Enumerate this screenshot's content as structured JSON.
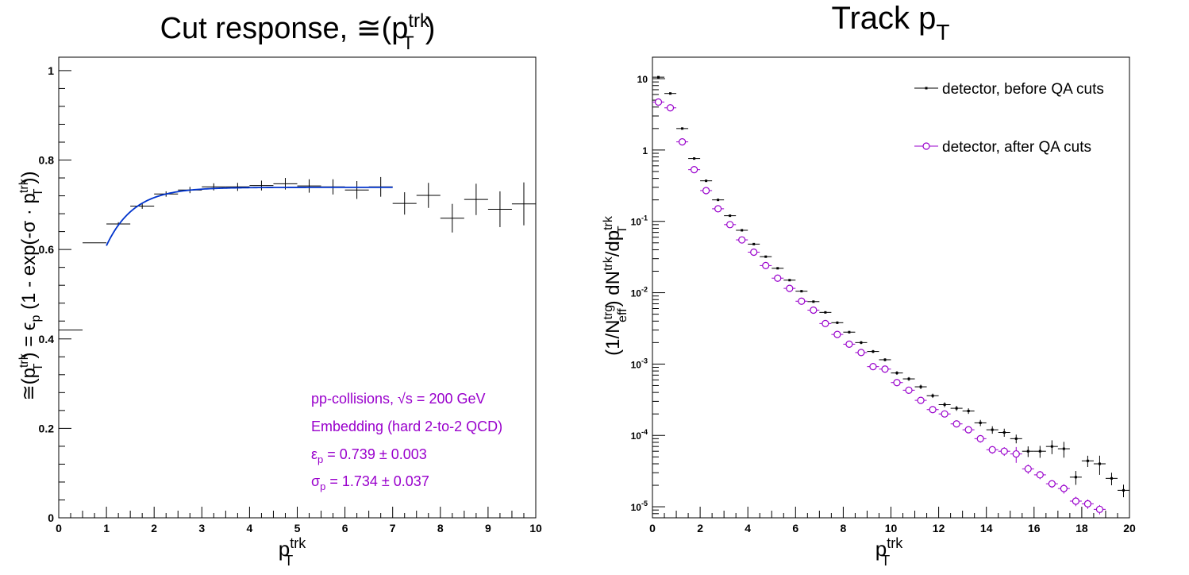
{
  "chart_data": [
    {
      "type": "scatter",
      "title": "Cut response, ≅(p_T^trk)",
      "xlabel": "p_T^trk",
      "ylabel": "≅(p_T^trk) = ε_p (1 - exp(-σ · p_T^trk))",
      "xlim": [
        0,
        10
      ],
      "ylim": [
        0,
        1.03
      ],
      "x_ticks": [
        "0",
        "1",
        "2",
        "3",
        "4",
        "5",
        "6",
        "7",
        "8",
        "9",
        "10"
      ],
      "y_ticks": [
        "0",
        "0.2",
        "0.4",
        "0.6",
        "0.8",
        "1"
      ],
      "grid": false,
      "series": [
        {
          "color": "#000000",
          "points": [
            {
              "x": 0.25,
              "y": 0.42,
              "xerr": 0.25,
              "yerr": 0.0
            },
            {
              "x": 0.75,
              "y": 0.615,
              "xerr": 0.25,
              "yerr": 0.0
            },
            {
              "x": 1.25,
              "y": 0.657,
              "xerr": 0.25,
              "yerr": 0.004
            },
            {
              "x": 1.75,
              "y": 0.697,
              "xerr": 0.25,
              "yerr": 0.006
            },
            {
              "x": 2.25,
              "y": 0.724,
              "xerr": 0.25,
              "yerr": 0.006
            },
            {
              "x": 2.75,
              "y": 0.733,
              "xerr": 0.25,
              "yerr": 0.007
            },
            {
              "x": 3.25,
              "y": 0.74,
              "xerr": 0.25,
              "yerr": 0.008
            },
            {
              "x": 3.75,
              "y": 0.74,
              "xerr": 0.25,
              "yerr": 0.009
            },
            {
              "x": 4.25,
              "y": 0.743,
              "xerr": 0.25,
              "yerr": 0.011
            },
            {
              "x": 4.75,
              "y": 0.747,
              "xerr": 0.25,
              "yerr": 0.013
            },
            {
              "x": 5.25,
              "y": 0.742,
              "xerr": 0.25,
              "yerr": 0.015
            },
            {
              "x": 5.75,
              "y": 0.74,
              "xerr": 0.25,
              "yerr": 0.017
            },
            {
              "x": 6.25,
              "y": 0.733,
              "xerr": 0.25,
              "yerr": 0.02
            },
            {
              "x": 6.75,
              "y": 0.74,
              "xerr": 0.25,
              "yerr": 0.022
            },
            {
              "x": 7.25,
              "y": 0.703,
              "xerr": 0.25,
              "yerr": 0.025
            },
            {
              "x": 7.75,
              "y": 0.721,
              "xerr": 0.25,
              "yerr": 0.028
            },
            {
              "x": 8.25,
              "y": 0.67,
              "xerr": 0.25,
              "yerr": 0.032
            },
            {
              "x": 8.75,
              "y": 0.712,
              "xerr": 0.25,
              "yerr": 0.035
            },
            {
              "x": 9.25,
              "y": 0.69,
              "xerr": 0.25,
              "yerr": 0.04
            },
            {
              "x": 9.75,
              "y": 0.702,
              "xerr": 0.25,
              "yerr": 0.048
            }
          ]
        }
      ],
      "fit": {
        "color": "#0033cc",
        "eps": 0.739,
        "sigma": 1.734,
        "x_range": [
          1.0,
          7.0
        ]
      },
      "annotations": [
        "pp-collisions, √s = 200 GeV",
        "Embedding (hard 2-to-2 QCD)",
        "ε_p = 0.739 ± 0.003",
        "σ_p = 1.734 ± 0.037"
      ],
      "annotation_color": "#9900cc"
    },
    {
      "type": "scatter",
      "title": "Track p_T",
      "xlabel": "p_T^trk",
      "ylabel": "(1/N_eff^trg) dN^trk/dp_T^trk",
      "xlim": [
        0,
        20
      ],
      "ylim": [
        7e-06,
        20
      ],
      "yscale": "log",
      "x_ticks": [
        "0",
        "2",
        "4",
        "6",
        "8",
        "10",
        "12",
        "14",
        "16",
        "18",
        "20"
      ],
      "y_ticks": [
        {
          "value": 1e-05,
          "label": "10^-5"
        },
        {
          "value": 0.0001,
          "label": "10^-4"
        },
        {
          "value": 0.001,
          "label": "10^-3"
        },
        {
          "value": 0.01,
          "label": "10^-2"
        },
        {
          "value": 0.1,
          "label": "10^-1"
        },
        {
          "value": 1,
          "label": "1"
        },
        {
          "value": 10,
          "label": "10"
        }
      ],
      "grid": false,
      "legend_position": "top-right",
      "series": [
        {
          "name": "detector, before QA cuts",
          "color": "#000000",
          "marker": "dot",
          "x": [
            0.25,
            0.75,
            1.25,
            1.75,
            2.25,
            2.75,
            3.25,
            3.75,
            4.25,
            4.75,
            5.25,
            5.75,
            6.25,
            6.75,
            7.25,
            7.75,
            8.25,
            8.75,
            9.25,
            9.75,
            10.25,
            10.75,
            11.25,
            11.75,
            12.25,
            12.75,
            13.25,
            13.75,
            14.25,
            14.75,
            15.25,
            15.75,
            16.25,
            16.75,
            17.25,
            17.75,
            18.25,
            18.75,
            19.25,
            19.75
          ],
          "y": [
            10.5,
            6.2,
            2.0,
            0.76,
            0.37,
            0.2,
            0.12,
            0.075,
            0.048,
            0.032,
            0.022,
            0.015,
            0.0105,
            0.0075,
            0.0053,
            0.0038,
            0.0028,
            0.002,
            0.0015,
            0.00115,
            0.00075,
            0.00062,
            0.00048,
            0.00036,
            0.00027,
            0.00024,
            0.00022,
            0.00015,
            0.00012,
            0.00011,
            9e-05,
            6e-05,
            6e-05,
            7e-05,
            6.5e-05,
            2.6e-05,
            4.4e-05,
            4e-05,
            2.5e-05,
            1.7e-05
          ],
          "yerr_rel": [
            0.01,
            0.01,
            0.01,
            0.01,
            0.01,
            0.01,
            0.01,
            0.01,
            0.02,
            0.02,
            0.02,
            0.02,
            0.03,
            0.03,
            0.03,
            0.04,
            0.04,
            0.05,
            0.05,
            0.05,
            0.06,
            0.06,
            0.07,
            0.07,
            0.08,
            0.08,
            0.09,
            0.1,
            0.12,
            0.13,
            0.14,
            0.17,
            0.19,
            0.22,
            0.25,
            0.22,
            0.18,
            0.3,
            0.2,
            0.2
          ]
        },
        {
          "name": "detector, after QA cuts",
          "color": "#9900cc",
          "marker": "open-circle",
          "x": [
            0.25,
            0.75,
            1.25,
            1.75,
            2.25,
            2.75,
            3.25,
            3.75,
            4.25,
            4.75,
            5.25,
            5.75,
            6.25,
            6.75,
            7.25,
            7.75,
            8.25,
            8.75,
            9.25,
            9.75,
            10.25,
            10.75,
            11.25,
            11.75,
            12.25,
            12.75,
            13.25,
            13.75,
            14.25,
            14.75,
            15.25,
            15.75,
            16.25,
            16.75,
            17.25,
            17.75,
            18.25,
            18.75
          ],
          "y": [
            4.7,
            3.9,
            1.3,
            0.53,
            0.27,
            0.15,
            0.09,
            0.055,
            0.037,
            0.024,
            0.016,
            0.0115,
            0.0076,
            0.0057,
            0.0037,
            0.0026,
            0.0019,
            0.00145,
            0.00092,
            0.00085,
            0.00055,
            0.00043,
            0.00031,
            0.00023,
            0.0002,
            0.000145,
            0.00012,
            9e-05,
            6.3e-05,
            6e-05,
            5.5e-05,
            3.4e-05,
            2.8e-05,
            2.1e-05,
            1.8e-05,
            1.2e-05,
            1.1e-05,
            9.2e-06
          ],
          "yerr_rel": [
            0.01,
            0.01,
            0.01,
            0.01,
            0.01,
            0.01,
            0.01,
            0.02,
            0.02,
            0.02,
            0.02,
            0.03,
            0.03,
            0.03,
            0.04,
            0.04,
            0.05,
            0.05,
            0.05,
            0.06,
            0.06,
            0.07,
            0.07,
            0.08,
            0.08,
            0.09,
            0.1,
            0.12,
            0.12,
            0.14,
            0.25,
            0.15,
            0.13,
            0.12,
            0.15,
            0.15,
            0.15,
            0.15
          ]
        }
      ]
    }
  ]
}
